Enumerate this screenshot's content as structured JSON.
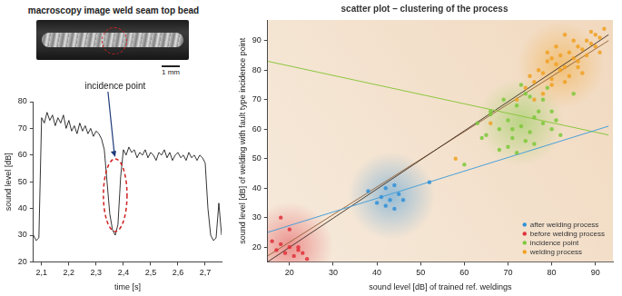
{
  "image": {
    "title": "macroscopy image weld seam top bead",
    "scale_bar": "1 mm"
  },
  "chart_data": [
    {
      "type": "line",
      "xlabel": "time [s]",
      "ylabel": "sound level [dB]",
      "x": [
        2.07,
        2.08,
        2.09,
        2.1,
        2.11,
        2.12,
        2.13,
        2.14,
        2.15,
        2.16,
        2.17,
        2.18,
        2.19,
        2.2,
        2.21,
        2.22,
        2.23,
        2.24,
        2.25,
        2.26,
        2.27,
        2.28,
        2.29,
        2.3,
        2.31,
        2.32,
        2.33,
        2.34,
        2.35,
        2.36,
        2.37,
        2.38,
        2.39,
        2.4,
        2.41,
        2.42,
        2.43,
        2.44,
        2.45,
        2.46,
        2.47,
        2.48,
        2.49,
        2.5,
        2.51,
        2.52,
        2.53,
        2.54,
        2.55,
        2.56,
        2.57,
        2.58,
        2.59,
        2.6,
        2.61,
        2.62,
        2.63,
        2.64,
        2.65,
        2.66,
        2.67,
        2.68,
        2.69,
        2.7,
        2.71,
        2.72,
        2.73,
        2.74,
        2.75,
        2.76
      ],
      "series": [
        {
          "color": "#000000",
          "values": [
            30,
            28,
            29,
            74,
            72,
            76,
            73,
            75,
            71,
            74,
            72,
            75,
            70,
            73,
            69,
            71,
            68,
            72,
            69,
            71,
            68,
            70,
            67,
            69,
            68,
            66,
            62,
            50,
            38,
            32,
            30,
            34,
            52,
            62,
            60,
            63,
            61,
            62,
            59,
            61,
            60,
            62,
            59,
            61,
            60,
            58,
            61,
            60,
            62,
            59,
            61,
            58,
            60,
            61,
            59,
            60,
            58,
            61,
            59,
            60,
            58,
            60,
            59,
            57,
            40,
            30,
            28,
            29,
            42,
            30
          ]
        }
      ],
      "xlim": [
        2.07,
        2.76
      ],
      "xticks": [
        {
          "value": 2.1,
          "label": "2,1"
        },
        {
          "value": 2.2,
          "label": "2,2"
        },
        {
          "value": 2.3,
          "label": "2,3"
        },
        {
          "value": 2.4,
          "label": "2,4"
        },
        {
          "value": 2.5,
          "label": "2,5"
        },
        {
          "value": 2.6,
          "label": "2,6"
        },
        {
          "value": 2.7,
          "label": "2,7"
        }
      ],
      "ylim": [
        20,
        80
      ],
      "yticks": [
        20,
        30,
        40,
        50,
        60,
        70,
        80
      ],
      "grid": false,
      "annotations": [
        {
          "text": "incidence point",
          "x": 2.37,
          "y": 45
        }
      ]
    },
    {
      "type": "scatter",
      "title": "scatter plot – clustering of the process",
      "xlabel": "sound level [dB] of trained ref. weldings",
      "ylabel": "sound level [dB] of welding with fault type incidence point",
      "xlim": [
        15,
        94
      ],
      "xticks": [
        20,
        30,
        40,
        50,
        60,
        70,
        80,
        90
      ],
      "ylim": [
        15,
        97
      ],
      "yticks": [
        20,
        30,
        40,
        50,
        60,
        70,
        80,
        90
      ],
      "grid": false,
      "legend": "lower right",
      "series": [
        {
          "name": "after welding process",
          "color": "#2f8fd8",
          "x": [
            38,
            40,
            41,
            42,
            43,
            44,
            45,
            46,
            44,
            42,
            52
          ],
          "values": [
            39,
            35,
            37,
            34,
            36,
            33,
            38,
            36,
            41,
            40,
            42
          ]
        },
        {
          "name": "before welding process",
          "color": "#e0303a",
          "x": [
            16,
            17,
            18,
            19,
            20,
            21,
            22,
            23,
            24,
            18,
            20,
            22
          ],
          "values": [
            22,
            19,
            21,
            18,
            20,
            17,
            19,
            18,
            16,
            30,
            26,
            20
          ]
        },
        {
          "name": "incidence point",
          "color": "#7cc83a",
          "x": [
            63,
            65,
            66,
            68,
            69,
            70,
            71,
            72,
            73,
            74,
            75,
            76,
            77,
            78,
            79,
            80,
            81,
            82,
            70,
            72,
            74,
            76,
            68,
            66,
            64,
            78,
            80,
            73,
            75,
            71,
            85,
            60
          ],
          "values": [
            62,
            58,
            66,
            60,
            70,
            63,
            57,
            68,
            61,
            72,
            59,
            64,
            66,
            62,
            74,
            60,
            63,
            58,
            54,
            52,
            56,
            55,
            53,
            65,
            57,
            70,
            66,
            75,
            71,
            60,
            72,
            48
          ]
        },
        {
          "name": "welding process",
          "color": "#f0a020",
          "x": [
            74,
            75,
            76,
            77,
            78,
            79,
            80,
            81,
            82,
            83,
            84,
            85,
            86,
            87,
            88,
            89,
            90,
            91,
            92,
            78,
            80,
            82,
            84,
            86,
            88,
            90,
            76,
            79,
            81,
            83,
            85,
            87,
            89,
            91,
            80,
            83,
            86,
            72,
            66,
            58
          ],
          "values": [
            74,
            78,
            76,
            80,
            79,
            83,
            77,
            82,
            85,
            81,
            86,
            84,
            88,
            87,
            90,
            89,
            92,
            91,
            94,
            72,
            75,
            80,
            78,
            83,
            85,
            88,
            70,
            86,
            88,
            76,
            90,
            79,
            93,
            86,
            84,
            92,
            81,
            70,
            62,
            50
          ]
        },
        {
          "type": "line",
          "color": "#4aa0d8",
          "x": [
            15,
            93
          ],
          "values": [
            25,
            61
          ]
        },
        {
          "type": "line",
          "color": "#8cc63f",
          "x": [
            15,
            93
          ],
          "values": [
            83,
            58
          ]
        },
        {
          "type": "line",
          "color": "#4a3c30",
          "x": [
            15,
            93
          ],
          "values": [
            15,
            92
          ]
        },
        {
          "type": "line",
          "color": "#9a6a40",
          "x": [
            15,
            93
          ],
          "values": [
            17,
            90
          ]
        }
      ]
    }
  ]
}
